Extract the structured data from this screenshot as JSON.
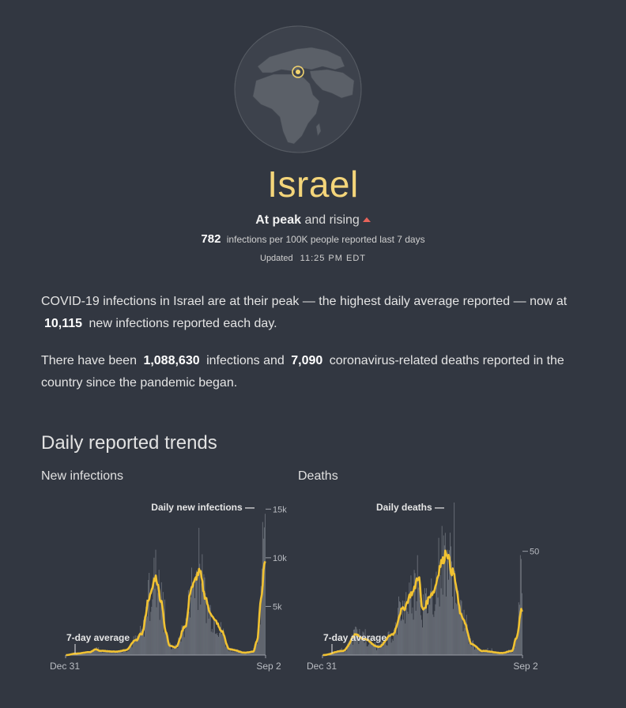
{
  "header": {
    "country": "Israel",
    "status_bold": "At peak",
    "status_rest": "and rising",
    "rate_value": "782",
    "rate_text": "infections per 100K people reported last 7 days",
    "updated_label": "Updated",
    "updated_time": "11:25 PM EDT"
  },
  "summary": {
    "p1_a": "COVID-19 infections in Israel are at their peak — the highest daily average reported — now at",
    "p1_value": "10,115",
    "p1_b": "new infections reported each day.",
    "p2_a": "There have been",
    "p2_infections": "1,088,630",
    "p2_b": "infections and",
    "p2_deaths": "7,090",
    "p2_c": "coronavirus-related deaths reported in the country since the pandemic began."
  },
  "section_title": "Daily reported trends",
  "colors": {
    "average_line": "#f1c232",
    "bars": "#7a7f88",
    "background": "#323741",
    "title": "#f4d57a",
    "rising": "#e8635a"
  },
  "chart_data": [
    {
      "type": "bar",
      "subtitle": "New infections",
      "bar_label": "Daily new infections",
      "avg_label": "7-day average",
      "x_start": "Dec 31",
      "x_end": "Sep 2",
      "yticks": [
        5000,
        10000,
        15000
      ],
      "ytick_labels": [
        "5k",
        "10k",
        "15k"
      ],
      "ylim": [
        0,
        16000
      ],
      "avg_keyframes": [
        [
          0,
          0
        ],
        [
          0.05,
          150
        ],
        [
          0.12,
          300
        ],
        [
          0.15,
          600
        ],
        [
          0.17,
          450
        ],
        [
          0.25,
          350
        ],
        [
          0.3,
          500
        ],
        [
          0.35,
          1500
        ],
        [
          0.38,
          2200
        ],
        [
          0.42,
          6000
        ],
        [
          0.45,
          8000
        ],
        [
          0.48,
          5500
        ],
        [
          0.5,
          2400
        ],
        [
          0.52,
          1000
        ],
        [
          0.55,
          800
        ],
        [
          0.6,
          3000
        ],
        [
          0.63,
          7000
        ],
        [
          0.67,
          8500
        ],
        [
          0.7,
          6000
        ],
        [
          0.72,
          4500
        ],
        [
          0.75,
          3500
        ],
        [
          0.78,
          2500
        ],
        [
          0.82,
          600
        ],
        [
          0.9,
          250
        ],
        [
          0.94,
          350
        ],
        [
          0.96,
          1500
        ],
        [
          0.98,
          6000
        ],
        [
          1,
          10115
        ]
      ],
      "bar_peak": 15000
    },
    {
      "type": "bar",
      "subtitle": "Deaths",
      "bar_label": "Daily deaths",
      "avg_label": "7-day average",
      "x_start": "Dec 31",
      "x_end": "Sep 2",
      "yticks": [
        50
      ],
      "ytick_labels": [
        "50"
      ],
      "ylim": [
        0,
        75
      ],
      "avg_keyframes": [
        [
          0,
          0
        ],
        [
          0.1,
          2
        ],
        [
          0.17,
          10
        ],
        [
          0.2,
          8
        ],
        [
          0.28,
          4
        ],
        [
          0.35,
          10
        ],
        [
          0.4,
          22
        ],
        [
          0.45,
          30
        ],
        [
          0.48,
          38
        ],
        [
          0.5,
          22
        ],
        [
          0.55,
          30
        ],
        [
          0.6,
          45
        ],
        [
          0.62,
          50
        ],
        [
          0.65,
          40
        ],
        [
          0.7,
          18
        ],
        [
          0.75,
          5
        ],
        [
          0.8,
          2
        ],
        [
          0.9,
          1
        ],
        [
          0.95,
          2
        ],
        [
          0.97,
          8
        ],
        [
          1,
          22
        ]
      ],
      "bar_peak": 72
    }
  ]
}
